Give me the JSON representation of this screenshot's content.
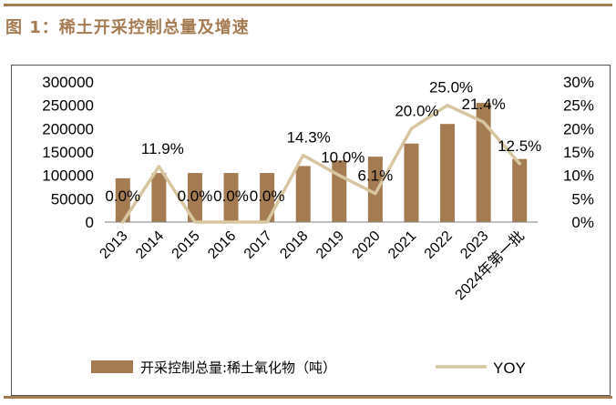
{
  "title": "图 1：稀土开采控制总量及增速",
  "chart_data": {
    "type": "bar",
    "categories": [
      "2013",
      "2014",
      "2015",
      "2016",
      "2017",
      "2018",
      "2019",
      "2020",
      "2021",
      "2022",
      "2023",
      "2024年第一批"
    ],
    "series": [
      {
        "name": "开采控制总量:稀土氧化物（吨）",
        "type": "bar",
        "axis": "left",
        "color": "#A57C52",
        "values": [
          93800,
          105000,
          105000,
          105000,
          105000,
          120000,
          132000,
          140000,
          168000,
          210000,
          255000,
          135000
        ]
      },
      {
        "name": "YOY",
        "type": "line",
        "axis": "right",
        "color": "#D7C6A0",
        "values": [
          0.0,
          11.9,
          0.0,
          0.0,
          0.0,
          14.3,
          10.0,
          6.1,
          20.0,
          25.0,
          21.4,
          12.5
        ],
        "labels": [
          "0.0%",
          "11.9%",
          "0.0%",
          "0.0%",
          "0.0%",
          "14.3%",
          "10.0%",
          "6.1%",
          "20.0%",
          "25.0%",
          "21.4%",
          "12.5%"
        ]
      }
    ],
    "y_left": {
      "ylim": [
        0,
        300000
      ],
      "ticks": [
        "0",
        "50000",
        "100000",
        "150000",
        "200000",
        "250000",
        "300000"
      ]
    },
    "y_right": {
      "ylim": [
        0,
        30
      ],
      "ticks": [
        "0%",
        "5%",
        "10%",
        "15%",
        "20%",
        "25%",
        "30%"
      ]
    },
    "grid": false,
    "legend_position": "bottom"
  }
}
